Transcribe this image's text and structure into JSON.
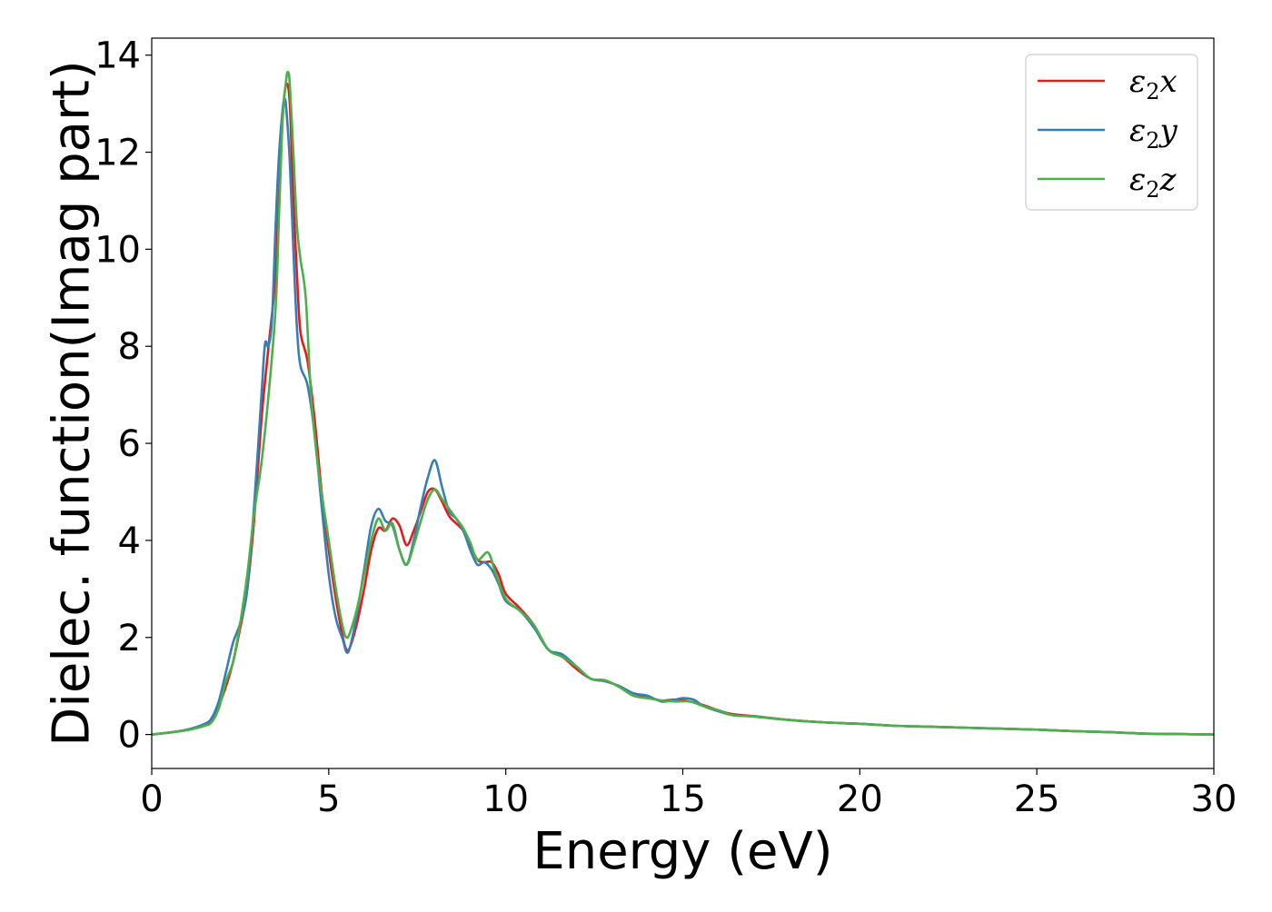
{
  "chart_data": {
    "type": "line",
    "title": "",
    "xlabel": "Energy (eV)",
    "ylabel": "Dielec. function(Imag part)",
    "xlim": [
      0,
      30
    ],
    "ylim": [
      -0.7,
      14.35
    ],
    "xticks": [
      0,
      5,
      10,
      15,
      20,
      25,
      30
    ],
    "yticks": [
      0,
      2,
      4,
      6,
      8,
      10,
      12,
      14
    ],
    "grid": false,
    "legend_position": "top-right",
    "series": [
      {
        "name_base": "ε",
        "name_sub": "2",
        "name_axis": "x",
        "color": "#e41a1c",
        "points": [
          [
            0,
            0
          ],
          [
            0.5,
            0.04
          ],
          [
            1.0,
            0.1
          ],
          [
            1.5,
            0.2
          ],
          [
            1.7,
            0.3
          ],
          [
            1.9,
            0.6
          ],
          [
            2.1,
            1.0
          ],
          [
            2.3,
            1.5
          ],
          [
            2.5,
            2.2
          ],
          [
            2.7,
            3.0
          ],
          [
            2.9,
            4.5
          ],
          [
            3.1,
            6.5
          ],
          [
            3.3,
            8.0
          ],
          [
            3.5,
            9.5
          ],
          [
            3.6,
            11.5
          ],
          [
            3.7,
            12.8
          ],
          [
            3.8,
            13.4
          ],
          [
            3.9,
            13.0
          ],
          [
            4.0,
            11.0
          ],
          [
            4.1,
            9.5
          ],
          [
            4.2,
            8.3
          ],
          [
            4.4,
            7.7
          ],
          [
            4.6,
            6.5
          ],
          [
            4.8,
            5.0
          ],
          [
            5.0,
            3.8
          ],
          [
            5.2,
            2.8
          ],
          [
            5.4,
            2.0
          ],
          [
            5.5,
            1.75
          ],
          [
            5.6,
            1.8
          ],
          [
            5.8,
            2.3
          ],
          [
            6.0,
            3.0
          ],
          [
            6.2,
            3.8
          ],
          [
            6.4,
            4.25
          ],
          [
            6.6,
            4.2
          ],
          [
            6.8,
            4.45
          ],
          [
            7.0,
            4.3
          ],
          [
            7.2,
            3.9
          ],
          [
            7.4,
            4.2
          ],
          [
            7.6,
            4.6
          ],
          [
            7.8,
            5.0
          ],
          [
            8.0,
            5.05
          ],
          [
            8.2,
            4.8
          ],
          [
            8.4,
            4.5
          ],
          [
            8.6,
            4.35
          ],
          [
            8.8,
            4.2
          ],
          [
            9.0,
            3.9
          ],
          [
            9.2,
            3.6
          ],
          [
            9.4,
            3.55
          ],
          [
            9.6,
            3.55
          ],
          [
            9.8,
            3.3
          ],
          [
            10.0,
            2.9
          ],
          [
            10.4,
            2.6
          ],
          [
            10.8,
            2.25
          ],
          [
            11.2,
            1.75
          ],
          [
            11.6,
            1.6
          ],
          [
            12.0,
            1.35
          ],
          [
            12.4,
            1.15
          ],
          [
            12.8,
            1.1
          ],
          [
            13.2,
            1.0
          ],
          [
            13.6,
            0.85
          ],
          [
            14.0,
            0.78
          ],
          [
            14.4,
            0.7
          ],
          [
            14.8,
            0.72
          ],
          [
            15.2,
            0.68
          ],
          [
            15.6,
            0.6
          ],
          [
            16.0,
            0.5
          ],
          [
            16.4,
            0.42
          ],
          [
            17.0,
            0.38
          ],
          [
            18.0,
            0.3
          ],
          [
            19.0,
            0.25
          ],
          [
            20.0,
            0.22
          ],
          [
            21.0,
            0.18
          ],
          [
            22.0,
            0.16
          ],
          [
            23.0,
            0.14
          ],
          [
            24.0,
            0.12
          ],
          [
            25.0,
            0.1
          ],
          [
            26.0,
            0.07
          ],
          [
            27.0,
            0.05
          ],
          [
            28.0,
            0.02
          ],
          [
            29.0,
            0.01
          ],
          [
            30.0,
            0.0
          ]
        ]
      },
      {
        "name_base": "ε",
        "name_sub": "2",
        "name_axis": "y",
        "color": "#377eb8",
        "points": [
          [
            0,
            0
          ],
          [
            0.5,
            0.04
          ],
          [
            1.0,
            0.1
          ],
          [
            1.5,
            0.22
          ],
          [
            1.7,
            0.35
          ],
          [
            1.9,
            0.7
          ],
          [
            2.1,
            1.3
          ],
          [
            2.3,
            1.9
          ],
          [
            2.5,
            2.3
          ],
          [
            2.7,
            3.0
          ],
          [
            2.9,
            4.8
          ],
          [
            3.1,
            7.0
          ],
          [
            3.2,
            8.05
          ],
          [
            3.3,
            8.0
          ],
          [
            3.4,
            8.6
          ],
          [
            3.5,
            10.5
          ],
          [
            3.6,
            12.0
          ],
          [
            3.7,
            12.9
          ],
          [
            3.75,
            13.1
          ],
          [
            3.8,
            12.9
          ],
          [
            3.9,
            11.8
          ],
          [
            4.0,
            10.0
          ],
          [
            4.1,
            8.4
          ],
          [
            4.2,
            7.6
          ],
          [
            4.4,
            7.2
          ],
          [
            4.6,
            6.2
          ],
          [
            4.8,
            4.7
          ],
          [
            5.0,
            3.3
          ],
          [
            5.2,
            2.4
          ],
          [
            5.4,
            1.95
          ],
          [
            5.5,
            1.7
          ],
          [
            5.6,
            1.8
          ],
          [
            5.8,
            2.5
          ],
          [
            6.0,
            3.4
          ],
          [
            6.2,
            4.3
          ],
          [
            6.4,
            4.65
          ],
          [
            6.6,
            4.4
          ],
          [
            6.8,
            4.3
          ],
          [
            7.0,
            3.8
          ],
          [
            7.2,
            3.5
          ],
          [
            7.4,
            4.0
          ],
          [
            7.6,
            4.7
          ],
          [
            7.8,
            5.3
          ],
          [
            8.0,
            5.65
          ],
          [
            8.2,
            5.1
          ],
          [
            8.4,
            4.6
          ],
          [
            8.6,
            4.45
          ],
          [
            8.8,
            4.2
          ],
          [
            9.0,
            3.8
          ],
          [
            9.2,
            3.5
          ],
          [
            9.4,
            3.55
          ],
          [
            9.6,
            3.4
          ],
          [
            9.8,
            3.1
          ],
          [
            10.0,
            2.75
          ],
          [
            10.4,
            2.55
          ],
          [
            10.8,
            2.2
          ],
          [
            11.2,
            1.75
          ],
          [
            11.6,
            1.65
          ],
          [
            12.0,
            1.4
          ],
          [
            12.4,
            1.15
          ],
          [
            12.8,
            1.1
          ],
          [
            13.2,
            1.0
          ],
          [
            13.6,
            0.85
          ],
          [
            14.0,
            0.8
          ],
          [
            14.4,
            0.68
          ],
          [
            14.8,
            0.72
          ],
          [
            15.0,
            0.75
          ],
          [
            15.3,
            0.72
          ],
          [
            15.6,
            0.58
          ],
          [
            16.0,
            0.48
          ],
          [
            16.4,
            0.4
          ],
          [
            17.0,
            0.37
          ],
          [
            18.0,
            0.3
          ],
          [
            19.0,
            0.25
          ],
          [
            20.0,
            0.22
          ],
          [
            21.0,
            0.18
          ],
          [
            22.0,
            0.16
          ],
          [
            23.0,
            0.14
          ],
          [
            24.0,
            0.12
          ],
          [
            25.0,
            0.1
          ],
          [
            26.0,
            0.07
          ],
          [
            27.0,
            0.05
          ],
          [
            28.0,
            0.02
          ],
          [
            29.0,
            0.01
          ],
          [
            30.0,
            0.0
          ]
        ]
      },
      {
        "name_base": "ε",
        "name_sub": "2",
        "name_axis": "z",
        "color": "#4daf4a",
        "points": [
          [
            0,
            0
          ],
          [
            0.5,
            0.04
          ],
          [
            1.0,
            0.09
          ],
          [
            1.5,
            0.18
          ],
          [
            1.7,
            0.26
          ],
          [
            1.9,
            0.55
          ],
          [
            2.1,
            1.1
          ],
          [
            2.3,
            1.5
          ],
          [
            2.5,
            2.3
          ],
          [
            2.7,
            3.3
          ],
          [
            2.9,
            4.6
          ],
          [
            3.1,
            5.6
          ],
          [
            3.3,
            7.0
          ],
          [
            3.5,
            8.8
          ],
          [
            3.6,
            10.8
          ],
          [
            3.7,
            12.7
          ],
          [
            3.8,
            13.5
          ],
          [
            3.85,
            13.65
          ],
          [
            3.9,
            13.4
          ],
          [
            4.0,
            12.0
          ],
          [
            4.1,
            10.5
          ],
          [
            4.2,
            9.8
          ],
          [
            4.35,
            9.0
          ],
          [
            4.5,
            7.0
          ],
          [
            4.7,
            5.5
          ],
          [
            5.0,
            4.0
          ],
          [
            5.2,
            3.0
          ],
          [
            5.4,
            2.2
          ],
          [
            5.5,
            2.0
          ],
          [
            5.6,
            2.1
          ],
          [
            5.8,
            2.6
          ],
          [
            6.0,
            3.3
          ],
          [
            6.2,
            4.0
          ],
          [
            6.4,
            4.45
          ],
          [
            6.6,
            4.2
          ],
          [
            6.8,
            4.35
          ],
          [
            7.0,
            3.8
          ],
          [
            7.2,
            3.5
          ],
          [
            7.4,
            3.9
          ],
          [
            7.6,
            4.4
          ],
          [
            7.8,
            4.85
          ],
          [
            8.0,
            5.05
          ],
          [
            8.2,
            4.85
          ],
          [
            8.4,
            4.65
          ],
          [
            8.6,
            4.45
          ],
          [
            8.8,
            4.25
          ],
          [
            9.0,
            3.95
          ],
          [
            9.2,
            3.6
          ],
          [
            9.5,
            3.75
          ],
          [
            9.7,
            3.35
          ],
          [
            10.0,
            2.8
          ],
          [
            10.4,
            2.55
          ],
          [
            10.8,
            2.25
          ],
          [
            11.2,
            1.75
          ],
          [
            11.6,
            1.6
          ],
          [
            12.0,
            1.4
          ],
          [
            12.4,
            1.15
          ],
          [
            12.8,
            1.12
          ],
          [
            13.2,
            0.98
          ],
          [
            13.6,
            0.8
          ],
          [
            14.0,
            0.75
          ],
          [
            14.4,
            0.7
          ],
          [
            14.8,
            0.68
          ],
          [
            15.2,
            0.68
          ],
          [
            15.6,
            0.58
          ],
          [
            16.0,
            0.5
          ],
          [
            16.4,
            0.4
          ],
          [
            17.0,
            0.37
          ],
          [
            18.0,
            0.3
          ],
          [
            19.0,
            0.25
          ],
          [
            20.0,
            0.22
          ],
          [
            21.0,
            0.18
          ],
          [
            22.0,
            0.16
          ],
          [
            23.0,
            0.14
          ],
          [
            24.0,
            0.12
          ],
          [
            25.0,
            0.1
          ],
          [
            26.0,
            0.07
          ],
          [
            27.0,
            0.05
          ],
          [
            28.0,
            0.02
          ],
          [
            29.0,
            0.01
          ],
          [
            30.0,
            0.0
          ]
        ]
      }
    ]
  }
}
